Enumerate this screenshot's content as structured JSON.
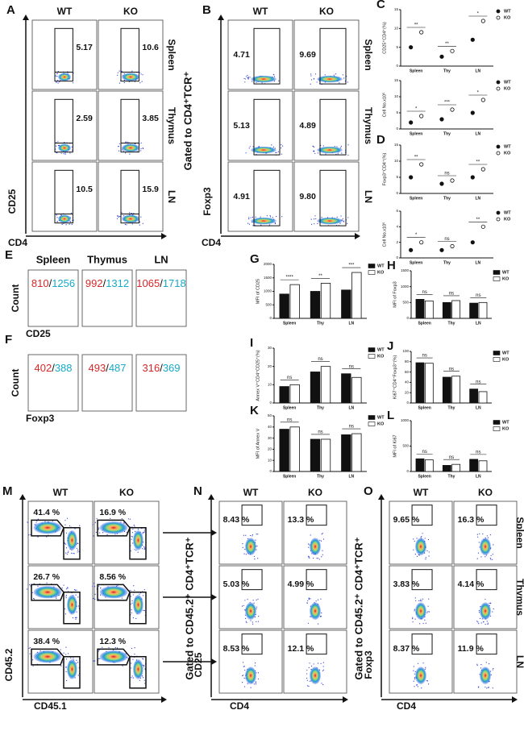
{
  "panels": {
    "A": {
      "letter": "A",
      "columns": [
        "WT",
        "KO"
      ],
      "rows": [
        "Spleen",
        "Thymus",
        "LN"
      ],
      "gates": [
        [
          "5.17",
          "10.6"
        ],
        [
          "2.59",
          "3.85"
        ],
        [
          "10.5",
          "15.9"
        ]
      ],
      "y_label": "CD25",
      "x_label": "CD4"
    },
    "B": {
      "letter": "B",
      "gated_label": "Gated to CD4⁺TCR⁺",
      "columns": [
        "WT",
        "KO"
      ],
      "rows": [
        "Spleen",
        "Thymus",
        "LN"
      ],
      "gates": [
        [
          "4.71",
          "9.69"
        ],
        [
          "5.13",
          "4.89"
        ],
        [
          "4.91",
          "9.80"
        ]
      ],
      "y_label": "Foxp3",
      "x_label": "CD4"
    },
    "C1": {
      "type": "dot",
      "letter": "C",
      "y_label": "CD25⁺CD4⁺(%)",
      "categories": [
        "Spleen",
        "Thy",
        "LN"
      ],
      "series": [
        {
          "name": "WT",
          "color": "#111111",
          "values": [
            5,
            2.5,
            7
          ]
        },
        {
          "name": "KO",
          "color": "#ffffff",
          "values": [
            9,
            4,
            12
          ]
        }
      ],
      "significance": [
        "**",
        "**",
        "*"
      ],
      "ylim": [
        0,
        15
      ],
      "yticks": [
        0,
        5,
        10,
        15
      ]
    },
    "C2": {
      "type": "dot",
      "y_label": "Cell No.x10⁵",
      "categories": [
        "Spleen",
        "Thy",
        "LN"
      ],
      "series": [
        {
          "name": "WT",
          "color": "#111111",
          "values": [
            2,
            3,
            5
          ]
        },
        {
          "name": "KO",
          "color": "#ffffff",
          "values": [
            4,
            6,
            9
          ]
        }
      ],
      "significance": [
        "*",
        "***",
        "*"
      ],
      "ylim": [
        0,
        15
      ],
      "yticks": [
        0,
        5,
        10,
        15
      ]
    },
    "D1": {
      "type": "dot",
      "letter": "D",
      "y_label": "Foxp3⁺CD4⁺(%)",
      "categories": [
        "Spleen",
        "Thy",
        "LN"
      ],
      "series": [
        {
          "name": "WT",
          "color": "#111111",
          "values": [
            5,
            3,
            5
          ]
        },
        {
          "name": "KO",
          "color": "#ffffff",
          "values": [
            9,
            4,
            7.5
          ]
        }
      ],
      "significance": [
        "**",
        "ns",
        "**"
      ],
      "ylim": [
        0,
        15
      ],
      "yticks": [
        0,
        5,
        10,
        15
      ]
    },
    "D2": {
      "type": "dot",
      "y_label": "Cell No.x10⁵",
      "categories": [
        "Spleen",
        "Thy",
        "LN"
      ],
      "series": [
        {
          "name": "WT",
          "color": "#111111",
          "values": [
            1,
            1,
            2
          ]
        },
        {
          "name": "KO",
          "color": "#ffffff",
          "values": [
            2,
            1.5,
            4
          ]
        }
      ],
      "significance": [
        "*",
        "ns",
        "**"
      ],
      "ylim": [
        0,
        6
      ],
      "yticks": [
        0,
        2,
        4,
        6
      ]
    },
    "E": {
      "letter": "E",
      "columns": [
        "Spleen",
        "Thymus",
        "LN"
      ],
      "wt_values": [
        "810",
        "992",
        "1065"
      ],
      "separator": "/",
      "ko_values": [
        "1256",
        "1312",
        "1718"
      ],
      "y_label": "Count",
      "x_label": "CD25"
    },
    "F": {
      "letter": "F",
      "wt_values": [
        "402",
        "493",
        "316"
      ],
      "separator": "/",
      "ko_values": [
        "388",
        "487",
        "369"
      ],
      "y_label": "Count",
      "x_label": "Foxp3"
    },
    "G": {
      "type": "bar",
      "letter": "G",
      "y_label": "MFI of CD25",
      "categories": [
        "Spleen",
        "Thy",
        "LN"
      ],
      "series": [
        {
          "name": "WT",
          "color": "#111111",
          "values": [
            900,
            1000,
            1050
          ]
        },
        {
          "name": "KO",
          "color": "#ffffff",
          "values": [
            1250,
            1300,
            1700
          ]
        }
      ],
      "significance": [
        "****",
        "**",
        "***"
      ],
      "ylim": [
        0,
        2000
      ],
      "yticks": [
        0,
        500,
        1000,
        1500,
        2000
      ]
    },
    "H": {
      "type": "bar",
      "letter": "H",
      "y_label": "MFI of Foxp3",
      "categories": [
        "Spleen",
        "Thy",
        "LN"
      ],
      "series": [
        {
          "name": "WT",
          "color": "#111111",
          "values": [
            600,
            500,
            480
          ]
        },
        {
          "name": "KO",
          "color": "#ffffff",
          "values": [
            550,
            560,
            500
          ]
        }
      ],
      "significance": [
        "ns",
        "ns",
        "ns"
      ],
      "ylim": [
        0,
        1500
      ],
      "yticks": [
        0,
        500,
        1000,
        1500
      ]
    },
    "I": {
      "type": "bar",
      "letter": "I",
      "y_label": "Annex V⁺CD4⁺CD25⁺(%)",
      "categories": [
        "Spleen",
        "Thy",
        "LN"
      ],
      "series": [
        {
          "name": "WT",
          "color": "#111111",
          "values": [
            9,
            17,
            16
          ]
        },
        {
          "name": "KO",
          "color": "#ffffff",
          "values": [
            10,
            20,
            14
          ]
        }
      ],
      "significance": [
        "ns",
        "ns",
        "ns"
      ],
      "ylim": [
        0,
        30
      ],
      "yticks": [
        0,
        10,
        20,
        30
      ]
    },
    "J": {
      "type": "bar",
      "letter": "J",
      "y_label": "Ki67⁺CD4⁺Foxp3⁺(%)",
      "categories": [
        "Spleen",
        "Thy",
        "LN"
      ],
      "series": [
        {
          "name": "WT",
          "color": "#111111",
          "values": [
            78,
            50,
            27
          ]
        },
        {
          "name": "KO",
          "color": "#ffffff",
          "values": [
            77,
            52,
            22
          ]
        }
      ],
      "significance": [
        "ns",
        "ns",
        "ns"
      ],
      "ylim": [
        0,
        100
      ],
      "yticks": [
        0,
        20,
        40,
        60,
        80,
        100
      ]
    },
    "K": {
      "type": "bar",
      "letter": "K",
      "y_label": "MFI of Annex V",
      "categories": [
        "Spleen",
        "Thy",
        "LN"
      ],
      "series": [
        {
          "name": "WT",
          "color": "#111111",
          "values": [
            38,
            29,
            33
          ]
        },
        {
          "name": "KO",
          "color": "#ffffff",
          "values": [
            40,
            29,
            34
          ]
        }
      ],
      "significance": [
        "ns",
        "ns",
        "ns"
      ],
      "ylim": [
        0,
        50
      ],
      "yticks": [
        0,
        10,
        20,
        30,
        40,
        50
      ]
    },
    "L": {
      "type": "bar",
      "letter": "L",
      "y_label": "MFI of Ki67",
      "categories": [
        "Spleen",
        "Thy",
        "LN"
      ],
      "series": [
        {
          "name": "WT",
          "color": "#111111",
          "values": [
            250,
            120,
            240
          ]
        },
        {
          "name": "KO",
          "color": "#ffffff",
          "values": [
            230,
            140,
            210
          ]
        }
      ],
      "significance": [
        "ns",
        "ns",
        "ns"
      ],
      "ylim": [
        0,
        1000
      ],
      "yticks": [
        0,
        500,
        1000
      ]
    },
    "M": {
      "letter": "M",
      "columns": [
        "WT",
        "KO"
      ],
      "gates": [
        [
          "41.4 %",
          "16.9 %"
        ],
        [
          "26.7 %",
          "8.56 %"
        ],
        [
          "38.4 %",
          "12.3 %"
        ]
      ],
      "y_label": "CD45.2",
      "x_label": "CD45.1"
    },
    "N": {
      "letter": "N",
      "gated_label": "Gated to CD45.2⁺ CD4⁺TCR⁺",
      "columns": [
        "WT",
        "KO"
      ],
      "gates": [
        [
          "8.43 %",
          "13.3 %"
        ],
        [
          "5.03 %",
          "4.99 %"
        ],
        [
          "8.53 %",
          "12.1 %"
        ]
      ],
      "y_label": "CD25",
      "x_label": "CD4"
    },
    "O": {
      "letter": "O",
      "gated_label": "Gated to CD45.2⁺ CD4⁺TCR⁺",
      "columns": [
        "WT",
        "KO"
      ],
      "rows": [
        "Spleen",
        "Thymus",
        "LN"
      ],
      "gates": [
        [
          "9.65 %",
          "16.3 %"
        ],
        [
          "3.83 %",
          "4.14 %"
        ],
        [
          "8.37 %",
          "11.9 %"
        ]
      ],
      "y_label": "Foxp3",
      "x_label": "CD4"
    }
  }
}
